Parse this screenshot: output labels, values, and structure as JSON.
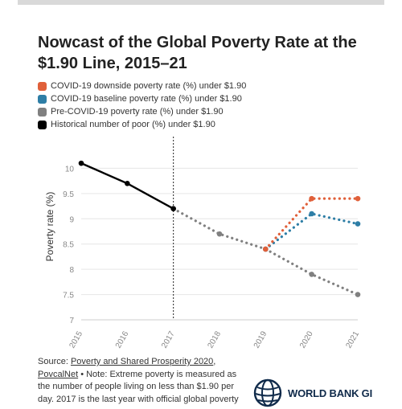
{
  "title": "Nowcast of the Global Poverty Rate at the $1.90 Line, 2015–21",
  "legend": [
    {
      "label": "COVID-19 downside poverty rate (%) under $1.90",
      "color": "#e0603a"
    },
    {
      "label": "COVID-19 baseline poverty rate (%) under $1.90",
      "color": "#2e7ea6"
    },
    {
      "label": "Pre-COVID-19 poverty rate (%) under $1.90",
      "color": "#808080"
    },
    {
      "label": "Historical number of poor (%) under $1.90",
      "color": "#000000"
    }
  ],
  "source": {
    "prefix": "Source: ",
    "link1": "Poverty and Shared Prosperity 2020",
    "comma": ",",
    "link2": "PovcalNet",
    "note": " • Note: Extreme poverty is measured as the number of people living on less than $1.90 per day. 2017 is the last year with official global poverty"
  },
  "logo_text": "WORLD BANK GI",
  "chart_data": {
    "type": "line",
    "ylabel": "Poverty rate (%)",
    "xlabel": "",
    "x": [
      "2015",
      "2016",
      "2017",
      "2018",
      "2019",
      "2020",
      "2021"
    ],
    "ylim": [
      7,
      10.5
    ],
    "yticks": [
      "7",
      "7.5",
      "8",
      "8.5",
      "9",
      "9.5",
      "10"
    ],
    "vline_at": "2017",
    "series": [
      {
        "name": "Historical number of poor (%) under $1.90",
        "color": "#000000",
        "style": "solid",
        "points": [
          [
            "2015",
            10.1
          ],
          [
            "2016",
            9.7
          ],
          [
            "2017",
            9.2
          ]
        ]
      },
      {
        "name": "Pre-COVID-19 poverty rate (%) under $1.90",
        "color": "#808080",
        "style": "dotted",
        "points": [
          [
            "2017",
            9.2
          ],
          [
            "2018",
            8.7
          ],
          [
            "2019",
            8.4
          ],
          [
            "2020",
            7.9
          ],
          [
            "2021",
            7.5
          ]
        ]
      },
      {
        "name": "COVID-19 baseline poverty rate (%) under $1.90",
        "color": "#2e7ea6",
        "style": "dotted",
        "points": [
          [
            "2019",
            8.4
          ],
          [
            "2020",
            9.1
          ],
          [
            "2021",
            8.9
          ]
        ]
      },
      {
        "name": "COVID-19 downside poverty rate (%) under $1.90",
        "color": "#e0603a",
        "style": "dotted",
        "points": [
          [
            "2019",
            8.4
          ],
          [
            "2020",
            9.4
          ],
          [
            "2021",
            9.4
          ]
        ]
      }
    ]
  }
}
